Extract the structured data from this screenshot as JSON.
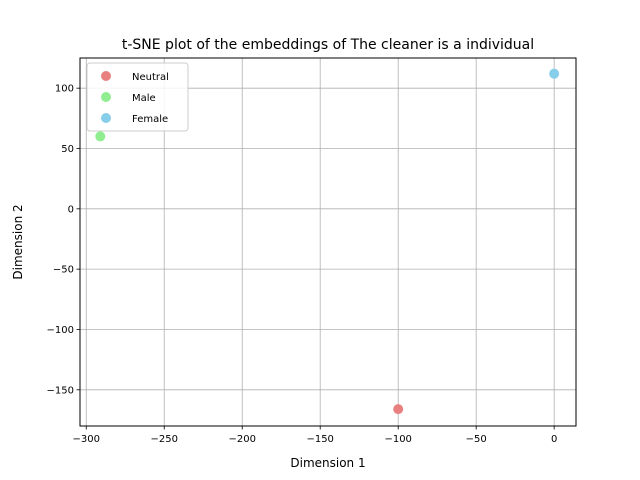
{
  "chart_data": {
    "type": "scatter",
    "title": "t-SNE plot of the embeddings of The cleaner is a individual",
    "xlabel": "Dimension 1",
    "ylabel": "Dimension 2",
    "xlim": [
      -304,
      14
    ],
    "ylim": [
      -180,
      125
    ],
    "xticks": [
      -300,
      -250,
      -200,
      -150,
      -100,
      -50,
      0
    ],
    "yticks": [
      -150,
      -100,
      -50,
      0,
      50,
      100
    ],
    "grid": true,
    "legend_position": "top-left",
    "series": [
      {
        "name": "Neutral",
        "color": "#e98080",
        "points": [
          {
            "x": -100,
            "y": -166
          }
        ]
      },
      {
        "name": "Male",
        "color": "#90ee90",
        "points": [
          {
            "x": -291,
            "y": 60
          }
        ]
      },
      {
        "name": "Female",
        "color": "#87ceeb",
        "points": [
          {
            "x": 0,
            "y": 112
          }
        ]
      }
    ]
  }
}
